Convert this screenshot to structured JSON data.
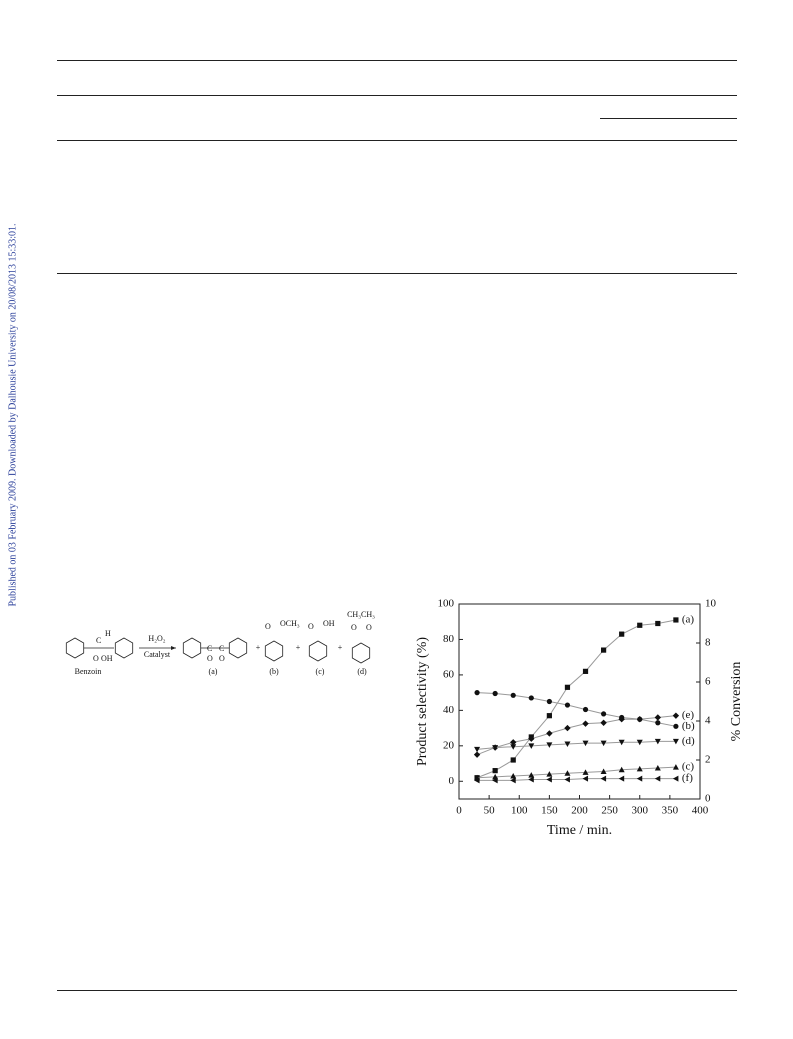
{
  "sidebar": "Published on 03 February 2009. Downloaded by Dalhousie University on 20/08/2013 15:33:01.",
  "scheme": {
    "reagent": "H₂O₂",
    "condition": "Catalyst",
    "substrate": "Benzoin",
    "h": "H",
    "oh": "OH",
    "och3": "OCH₃",
    "acid_oh": "OH",
    "ch3ch3": "CH₃CH₃",
    "plus": "+",
    "c": "C",
    "o": "O",
    "labels": [
      "(a)",
      "(b)",
      "(c)",
      "(d)"
    ]
  },
  "chart_data": {
    "type": "line",
    "xlabel": "Time / min.",
    "ylabel": "Product selectivity (%)",
    "y2label": "% Conversion",
    "x": [
      30,
      60,
      90,
      120,
      150,
      180,
      210,
      240,
      270,
      300,
      330,
      360
    ],
    "xlim": [
      0,
      400
    ],
    "xticks": [
      0,
      50,
      100,
      150,
      200,
      250,
      300,
      350,
      400
    ],
    "ylim": [
      -10,
      100
    ],
    "yticks": [
      0,
      20,
      40,
      60,
      80,
      100
    ],
    "y2lim": [
      0,
      10
    ],
    "y2ticks": [
      0,
      2,
      4,
      6,
      8,
      10
    ],
    "line_color": "#999999",
    "marker_color": "#111111",
    "series": [
      {
        "name": "(a)",
        "marker": "square",
        "values": [
          2,
          6,
          12,
          25,
          37,
          53,
          62,
          74,
          83,
          88,
          89,
          91
        ]
      },
      {
        "name": "(e)",
        "marker": "diamond",
        "values": [
          15,
          19,
          22,
          24,
          27,
          30,
          32.5,
          33,
          35,
          35,
          36,
          37
        ]
      },
      {
        "name": "(b)",
        "marker": "circle",
        "values": [
          50,
          49.5,
          48.5,
          47,
          45,
          43,
          40.5,
          38,
          36,
          35,
          33,
          31
        ]
      },
      {
        "name": "(d)",
        "marker": "down",
        "values": [
          18,
          19,
          19.5,
          20,
          20.5,
          21,
          21.5,
          21.5,
          22,
          22,
          22.5,
          22.5
        ]
      },
      {
        "name": "(c)",
        "marker": "up",
        "values": [
          2,
          2.5,
          3,
          3.5,
          4,
          4.5,
          5,
          5.5,
          6.5,
          7,
          7.5,
          8
        ]
      },
      {
        "name": "(f)",
        "marker": "left",
        "values": [
          0.5,
          0.5,
          0.5,
          1,
          1,
          1,
          1.5,
          1.5,
          1.5,
          1.5,
          1.5,
          1.5
        ]
      }
    ]
  }
}
